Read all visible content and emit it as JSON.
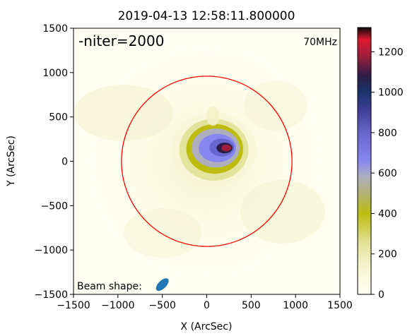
{
  "chart_data": {
    "type": "heatmap",
    "title": "2019-04-13 12:58:11.800000",
    "xlabel": "X (ArcSec)",
    "ylabel": "Y (ArcSec)",
    "xlim": [
      -1500,
      1500
    ],
    "ylim": [
      -1500,
      1500
    ],
    "x_ticks": [
      -1500,
      -1000,
      -500,
      0,
      500,
      1000,
      1500
    ],
    "y_ticks": [
      -1500,
      -1000,
      -500,
      0,
      500,
      1000,
      1500
    ],
    "annotations": {
      "niter": "-niter=2000",
      "frequency": "70MHz",
      "beam": "Beam shape:"
    },
    "colorbar": {
      "range": [
        0,
        1320
      ],
      "ticks": [
        0,
        200,
        400,
        600,
        800,
        1000,
        1200
      ],
      "stops": [
        {
          "v": 0,
          "color": "#fffff2"
        },
        {
          "v": 120,
          "color": "#f7f7d5"
        },
        {
          "v": 250,
          "color": "#e3e29a"
        },
        {
          "v": 400,
          "color": "#bdbd10"
        },
        {
          "v": 500,
          "color": "#b2b276"
        },
        {
          "v": 580,
          "color": "#aeaebf"
        },
        {
          "v": 660,
          "color": "#8787f0"
        },
        {
          "v": 800,
          "color": "#6666cc"
        },
        {
          "v": 920,
          "color": "#3c3c93"
        },
        {
          "v": 1000,
          "color": "#1a336b"
        },
        {
          "v": 1080,
          "color": "#2a1e46"
        },
        {
          "v": 1180,
          "color": "#a01e3c"
        },
        {
          "v": 1260,
          "color": "#e0182f"
        },
        {
          "v": 1320,
          "color": "#0a0a0a"
        }
      ]
    },
    "solar_limb": {
      "center": [
        0,
        0
      ],
      "radius": 960,
      "color": "#ff0000"
    },
    "source": {
      "peak_x": 220,
      "peak_y": 150,
      "peak_value": 1280
    },
    "beam_ellipse": {
      "center": [
        -500,
        -1390
      ],
      "semi_major": 90,
      "semi_minor": 45,
      "angle_deg": 45,
      "color": "#1f77b4"
    },
    "colors": {
      "niter_text": "#2196f3",
      "limb": "#ff0000"
    }
  }
}
